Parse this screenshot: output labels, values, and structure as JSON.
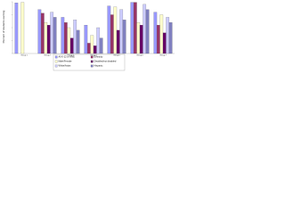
{
  "chart_data": {
    "type": "bar",
    "y_label": "Percent of students earning",
    "categories": [
      "Group 1",
      "Group 2",
      "Group 3",
      "Group 4",
      "Group 5",
      "Group 6",
      "Group 7"
    ],
    "series": [
      {
        "name": "All K-12 or NNE",
        "color": "#9999ff",
        "values": [
          98,
          85,
          70,
          55,
          92,
          99,
          80
        ]
      },
      {
        "name": "Ethnicity",
        "color": "#993366",
        "values": [
          0,
          78,
          60,
          20,
          75,
          99,
          55
        ]
      },
      {
        "name": "Male/Female",
        "color": "#ffffcc",
        "values": [
          99,
          60,
          50,
          35,
          90,
          60,
          75
        ]
      },
      {
        "name": "Disabled/not disabled",
        "color": "#660066",
        "values": [
          0,
          55,
          30,
          15,
          45,
          55,
          40
        ]
      },
      {
        "name": "White/Asian",
        "color": "#ccccff",
        "values": [
          0,
          80,
          65,
          50,
          85,
          95,
          70
        ]
      },
      {
        "name": "Hispanic",
        "color": "#8080c0",
        "values": [
          0,
          70,
          45,
          30,
          65,
          85,
          60
        ]
      }
    ],
    "ylim": [
      0,
      100
    ],
    "yticks": [
      0,
      25,
      50,
      75,
      100
    ],
    "legend": "bottom"
  }
}
